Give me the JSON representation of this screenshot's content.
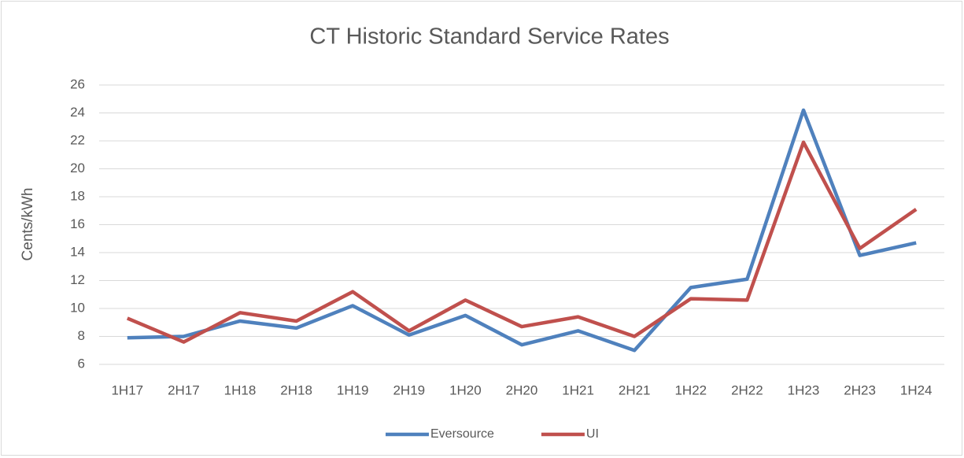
{
  "chart_data": {
    "type": "line",
    "title": "CT Historic Standard Service Rates",
    "y_label": "Cents/kWh",
    "categories": [
      "1H17",
      "2H17",
      "1H18",
      "2H18",
      "1H19",
      "2H19",
      "1H20",
      "2H20",
      "1H21",
      "2H21",
      "1H22",
      "2H22",
      "1H23",
      "2H23",
      "1H24"
    ],
    "series": [
      {
        "name": "Eversource",
        "color": "#4f81bd",
        "values": [
          7.9,
          8.0,
          9.1,
          8.6,
          10.2,
          8.1,
          9.5,
          7.4,
          8.4,
          7.0,
          11.5,
          12.1,
          24.2,
          13.8,
          14.7
        ]
      },
      {
        "name": "UI",
        "color": "#c0504d",
        "values": [
          9.3,
          7.6,
          9.7,
          9.1,
          11.2,
          8.4,
          10.6,
          8.7,
          9.4,
          8.0,
          10.7,
          10.6,
          21.9,
          14.3,
          17.1
        ]
      }
    ],
    "ylim": [
      6,
      26
    ],
    "yticks": [
      6,
      8,
      10,
      12,
      14,
      16,
      18,
      20,
      22,
      24,
      26
    ],
    "grid": true,
    "legend": "bottom"
  }
}
